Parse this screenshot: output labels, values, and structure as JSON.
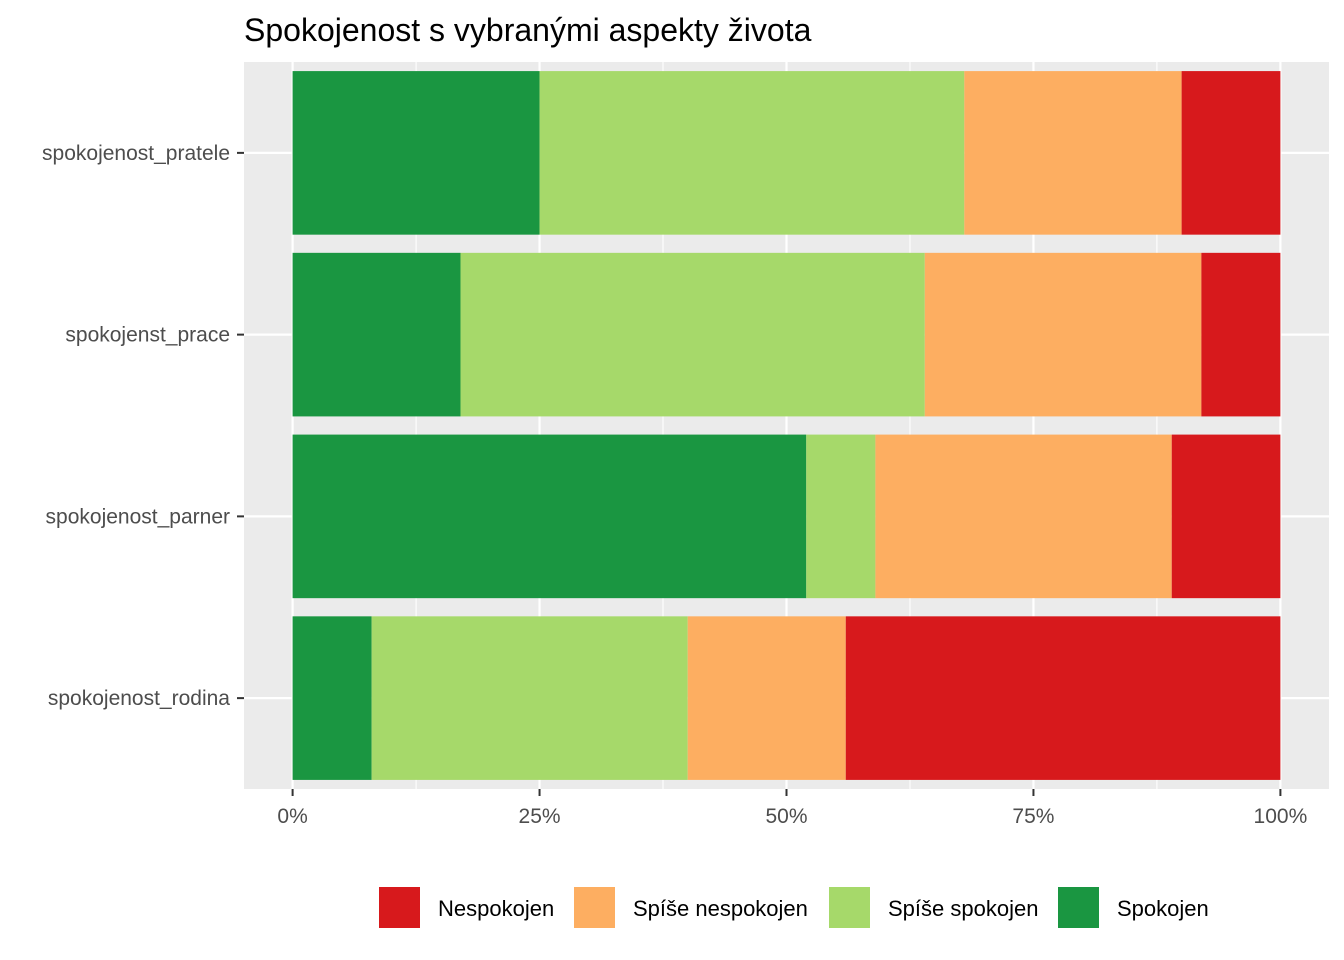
{
  "chart_data": {
    "type": "bar",
    "orientation": "horizontal",
    "stacked": true,
    "normalized": true,
    "title": "Spokojenost s vybranými aspekty života",
    "xlabel": "",
    "ylabel": "",
    "xlim": [
      0,
      1
    ],
    "x_ticks": [
      {
        "value": 0,
        "label": "0%"
      },
      {
        "value": 0.25,
        "label": "25%"
      },
      {
        "value": 0.5,
        "label": "50%"
      },
      {
        "value": 0.75,
        "label": "75%"
      },
      {
        "value": 1,
        "label": "100%"
      }
    ],
    "categories": [
      "spokojenost_pratele",
      "spokojenst_prace",
      "spokojenost_parner",
      "spokojenost_rodina"
    ],
    "stack_order": [
      "Spokojen",
      "Spíše spokojen",
      "Spíše nespokojen",
      "Nespokojen"
    ],
    "series": [
      {
        "name": "Nespokojen",
        "color": "#d7191c",
        "values": [
          0.1,
          0.08,
          0.11,
          0.44
        ]
      },
      {
        "name": "Spíše nespokojen",
        "color": "#fdae61",
        "values": [
          0.22,
          0.28,
          0.3,
          0.16
        ]
      },
      {
        "name": "Spíše spokojen",
        "color": "#a6d96a",
        "values": [
          0.43,
          0.47,
          0.07,
          0.32
        ]
      },
      {
        "name": "Spokojen",
        "color": "#1a9641",
        "values": [
          0.25,
          0.17,
          0.52,
          0.08
        ]
      }
    ],
    "legend_position": "bottom",
    "grid": true,
    "panel_background": "#ebebeb"
  }
}
